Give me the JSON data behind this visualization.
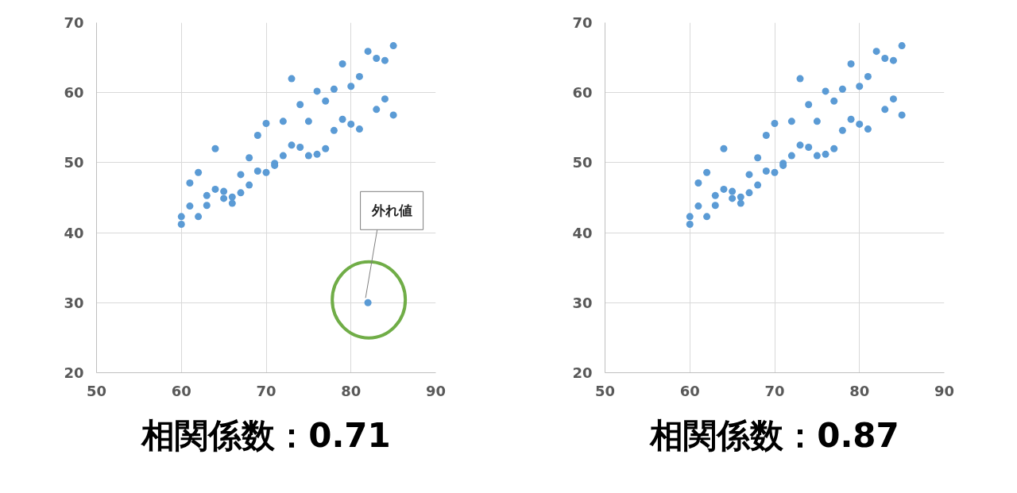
{
  "chart_data": [
    {
      "type": "scatter",
      "color": "#5b9bd5",
      "marker": "circle",
      "xlim": [
        50,
        90
      ],
      "ylim": [
        20,
        70
      ],
      "xticks": [
        50,
        60,
        70,
        80,
        90
      ],
      "yticks": [
        20,
        30,
        40,
        50,
        60,
        70
      ],
      "grid": true,
      "x": [
        60,
        60,
        61,
        61,
        62,
        62,
        63,
        63,
        64,
        64,
        65,
        65,
        66,
        66,
        67,
        67,
        68,
        68,
        69,
        69,
        70,
        70,
        71,
        71,
        72,
        72,
        73,
        73,
        74,
        74,
        75,
        75,
        76,
        76,
        77,
        77,
        78,
        78,
        79,
        79,
        80,
        80,
        81,
        81,
        82,
        83,
        83,
        84,
        84,
        85,
        85,
        82
      ],
      "values": [
        42.3,
        41.2,
        47.1,
        43.8,
        48.6,
        42.3,
        45.3,
        43.9,
        52.0,
        46.2,
        45.9,
        44.9,
        45.1,
        44.2,
        48.3,
        45.7,
        50.7,
        46.8,
        53.9,
        48.8,
        55.6,
        48.6,
        49.9,
        49.6,
        55.9,
        51.0,
        62.0,
        52.5,
        58.3,
        52.2,
        55.9,
        51.0,
        60.2,
        51.2,
        58.8,
        52.0,
        60.5,
        54.6,
        64.1,
        56.2,
        60.9,
        55.5,
        62.3,
        54.8,
        65.9,
        64.9,
        57.6,
        64.6,
        59.1,
        66.7,
        56.8,
        30.0
      ],
      "annotations": [
        {
          "text": "外れ値",
          "x": 82,
          "y": 30
        },
        "相関係数：0.71"
      ]
    },
    {
      "type": "scatter",
      "color": "#5b9bd5",
      "marker": "circle",
      "xlim": [
        50,
        90
      ],
      "ylim": [
        20,
        70
      ],
      "xticks": [
        50,
        60,
        70,
        80,
        90
      ],
      "yticks": [
        20,
        30,
        40,
        50,
        60,
        70
      ],
      "grid": true,
      "x": [
        60,
        60,
        61,
        61,
        62,
        62,
        63,
        63,
        64,
        64,
        65,
        65,
        66,
        66,
        67,
        67,
        68,
        68,
        69,
        69,
        70,
        70,
        71,
        71,
        72,
        72,
        73,
        73,
        74,
        74,
        75,
        75,
        76,
        76,
        77,
        77,
        78,
        78,
        79,
        79,
        80,
        80,
        81,
        81,
        82,
        83,
        83,
        84,
        84,
        85,
        85
      ],
      "values": [
        42.3,
        41.2,
        47.1,
        43.8,
        48.6,
        42.3,
        45.3,
        43.9,
        52.0,
        46.2,
        45.9,
        44.9,
        45.1,
        44.2,
        48.3,
        45.7,
        50.7,
        46.8,
        53.9,
        48.8,
        55.6,
        48.6,
        49.9,
        49.6,
        55.9,
        51.0,
        62.0,
        52.5,
        58.3,
        52.2,
        55.9,
        51.0,
        60.2,
        51.2,
        58.8,
        52.0,
        60.5,
        54.6,
        64.1,
        56.2,
        60.9,
        55.5,
        62.3,
        54.8,
        65.9,
        64.9,
        57.6,
        64.6,
        59.1,
        66.7,
        56.8
      ],
      "annotations": [
        "相関係数：0.87"
      ]
    }
  ]
}
